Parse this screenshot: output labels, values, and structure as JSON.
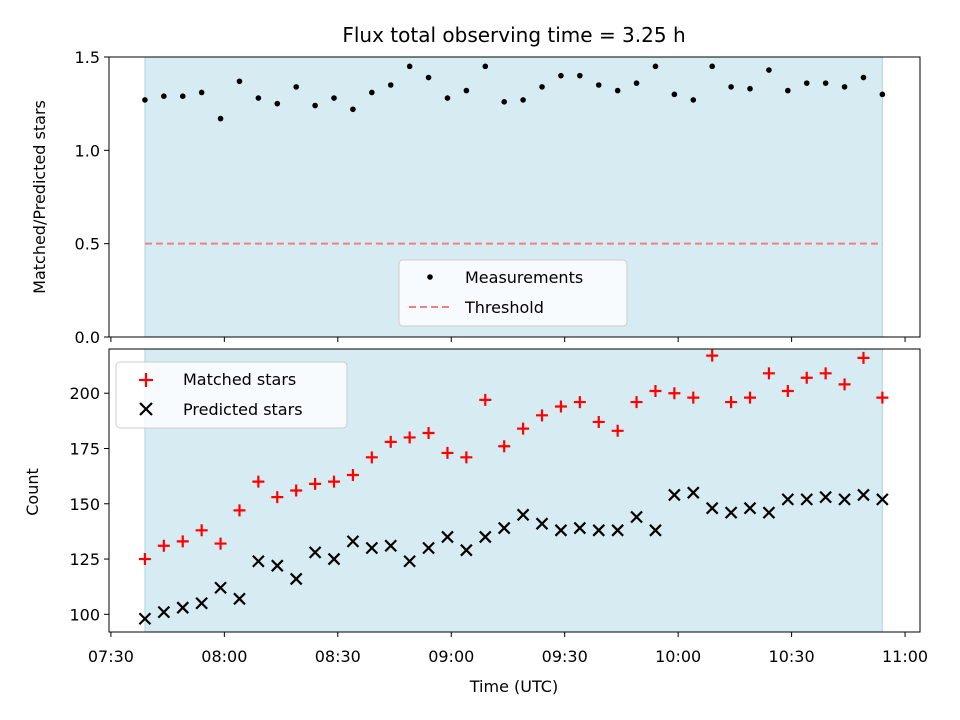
{
  "chart_data": [
    {
      "type": "scatter",
      "title": "Flux total observing time = 3.25 h",
      "xlabel": "",
      "ylabel": "Matched/Predicted stars",
      "ylim": [
        0,
        1.5
      ],
      "yticks": [
        "0.0",
        "0.5",
        "1.0",
        "1.5"
      ],
      "observing_span": [
        "07:39",
        "10:54"
      ],
      "shaded_span_color": "#add8e6",
      "legend": {
        "placement": "lower center",
        "entries": [
          "Measurements",
          "Threshold"
        ]
      },
      "threshold": {
        "name": "Threshold",
        "value": 0.5,
        "color": "#f08080",
        "style": "dashed"
      },
      "series": [
        {
          "name": "Measurements",
          "marker": "dot",
          "color": "#000000",
          "x": [
            "07:39",
            "07:44",
            "07:49",
            "07:54",
            "07:59",
            "08:04",
            "08:09",
            "08:14",
            "08:19",
            "08:24",
            "08:29",
            "08:34",
            "08:39",
            "08:44",
            "08:49",
            "08:54",
            "08:59",
            "09:04",
            "09:09",
            "09:14",
            "09:19",
            "09:24",
            "09:29",
            "09:34",
            "09:39",
            "09:44",
            "09:49",
            "09:54",
            "09:59",
            "10:04",
            "10:09",
            "10:14",
            "10:19",
            "10:24",
            "10:29",
            "10:34",
            "10:39",
            "10:44",
            "10:49",
            "10:54"
          ],
          "y": [
            1.27,
            1.29,
            1.29,
            1.31,
            1.17,
            1.37,
            1.28,
            1.25,
            1.34,
            1.24,
            1.28,
            1.22,
            1.31,
            1.35,
            1.45,
            1.39,
            1.28,
            1.32,
            1.45,
            1.26,
            1.27,
            1.34,
            1.4,
            1.4,
            1.35,
            1.32,
            1.36,
            1.45,
            1.3,
            1.27,
            1.45,
            1.34,
            1.33,
            1.43,
            1.32,
            1.36,
            1.36,
            1.34,
            1.39,
            1.3
          ]
        }
      ]
    },
    {
      "type": "scatter",
      "title": "",
      "xlabel": "Time (UTC)",
      "ylabel": "Count",
      "xlim": [
        "07:30",
        "11:00"
      ],
      "xticks": [
        "07:30",
        "08:00",
        "08:30",
        "09:00",
        "09:30",
        "10:00",
        "10:30",
        "11:00"
      ],
      "ylim": [
        92,
        220
      ],
      "yticks": [
        "100",
        "125",
        "150",
        "175",
        "200"
      ],
      "shaded_span_color": "#add8e6",
      "legend": {
        "placement": "upper left",
        "entries": [
          "Matched stars",
          "Predicted stars"
        ]
      },
      "series": [
        {
          "name": "Matched stars",
          "marker": "plus",
          "color": "#ff0000",
          "x": [
            "07:39",
            "07:44",
            "07:49",
            "07:54",
            "07:59",
            "08:04",
            "08:09",
            "08:14",
            "08:19",
            "08:24",
            "08:29",
            "08:34",
            "08:39",
            "08:44",
            "08:49",
            "08:54",
            "08:59",
            "09:04",
            "09:09",
            "09:14",
            "09:19",
            "09:24",
            "09:29",
            "09:34",
            "09:39",
            "09:44",
            "09:49",
            "09:54",
            "09:59",
            "10:04",
            "10:09",
            "10:14",
            "10:19",
            "10:24",
            "10:29",
            "10:34",
            "10:39",
            "10:44",
            "10:49",
            "10:54"
          ],
          "y": [
            125,
            131,
            133,
            138,
            132,
            147,
            160,
            153,
            156,
            159,
            160,
            163,
            171,
            178,
            180,
            182,
            173,
            171,
            197,
            176,
            184,
            190,
            194,
            196,
            187,
            183,
            196,
            201,
            200,
            198,
            217,
            196,
            198,
            209,
            201,
            207,
            209,
            204,
            216,
            198
          ]
        },
        {
          "name": "Predicted stars",
          "marker": "x",
          "color": "#000000",
          "x": [
            "07:39",
            "07:44",
            "07:49",
            "07:54",
            "07:59",
            "08:04",
            "08:09",
            "08:14",
            "08:19",
            "08:24",
            "08:29",
            "08:34",
            "08:39",
            "08:44",
            "08:49",
            "08:54",
            "08:59",
            "09:04",
            "09:09",
            "09:14",
            "09:19",
            "09:24",
            "09:29",
            "09:34",
            "09:39",
            "09:44",
            "09:49",
            "09:54",
            "09:59",
            "10:04",
            "10:09",
            "10:14",
            "10:19",
            "10:24",
            "10:29",
            "10:34",
            "10:39",
            "10:44",
            "10:49",
            "10:54"
          ],
          "y": [
            98,
            101,
            103,
            105,
            112,
            107,
            124,
            122,
            116,
            128,
            125,
            133,
            130,
            131,
            124,
            130,
            135,
            129,
            135,
            139,
            145,
            141,
            138,
            139,
            138,
            138,
            144,
            138,
            154,
            155,
            148,
            146,
            148,
            146,
            152,
            152,
            153,
            152,
            154,
            152
          ]
        }
      ]
    }
  ]
}
